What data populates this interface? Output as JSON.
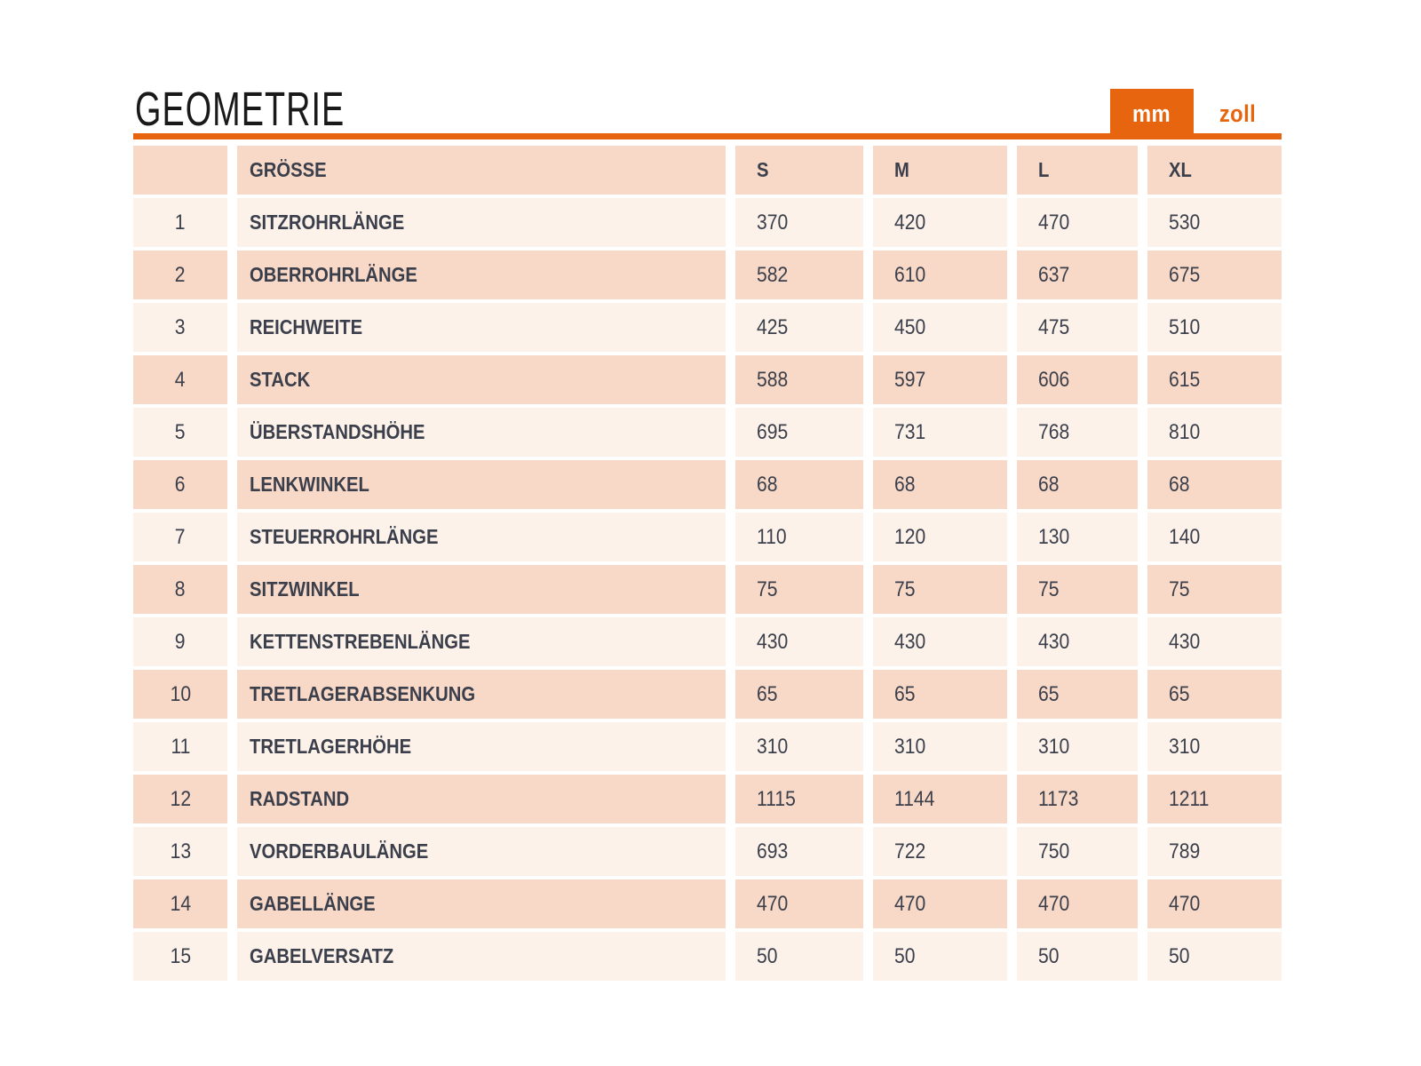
{
  "page": {
    "title": "GEOMETRIE"
  },
  "unit_toggle": {
    "tabs": [
      {
        "label": "mm",
        "active": true
      },
      {
        "label": "zoll",
        "active": false
      }
    ]
  },
  "colors": {
    "accent": "#e7650f",
    "row_peach": "#f8d8c6",
    "row_light": "#fdf2ea",
    "text_dark": "#3a3f4b",
    "title_color": "#191919",
    "active_tab_text": "#ffffff"
  },
  "table": {
    "header": {
      "index_label": "",
      "size_label": "GRÖSSE",
      "size_columns": [
        "S",
        "M",
        "L",
        "XL"
      ]
    },
    "rows": [
      {
        "num": "1",
        "label": "SITZROHRLÄNGE",
        "values": [
          "370",
          "420",
          "470",
          "530"
        ]
      },
      {
        "num": "2",
        "label": "OBERROHRLÄNGE",
        "values": [
          "582",
          "610",
          "637",
          "675"
        ]
      },
      {
        "num": "3",
        "label": "REICHWEITE",
        "values": [
          "425",
          "450",
          "475",
          "510"
        ]
      },
      {
        "num": "4",
        "label": "STACK",
        "values": [
          "588",
          "597",
          "606",
          "615"
        ]
      },
      {
        "num": "5",
        "label": "ÜBERSTANDSHÖHE",
        "values": [
          "695",
          "731",
          "768",
          "810"
        ]
      },
      {
        "num": "6",
        "label": "LENKWINKEL",
        "values": [
          "68",
          "68",
          "68",
          "68"
        ]
      },
      {
        "num": "7",
        "label": "STEUERROHRLÄNGE",
        "values": [
          "110",
          "120",
          "130",
          "140"
        ]
      },
      {
        "num": "8",
        "label": "SITZWINKEL",
        "values": [
          "75",
          "75",
          "75",
          "75"
        ]
      },
      {
        "num": "9",
        "label": "KETTENSTREBENLÄNGE",
        "values": [
          "430",
          "430",
          "430",
          "430"
        ]
      },
      {
        "num": "10",
        "label": "TRETLAGERABSENKUNG",
        "values": [
          "65",
          "65",
          "65",
          "65"
        ]
      },
      {
        "num": "11",
        "label": "TRETLAGERHÖHE",
        "values": [
          "310",
          "310",
          "310",
          "310"
        ]
      },
      {
        "num": "12",
        "label": "RADSTAND",
        "values": [
          "1115",
          "1144",
          "1173",
          "1211"
        ]
      },
      {
        "num": "13",
        "label": "VORDERBAULÄNGE",
        "values": [
          "693",
          "722",
          "750",
          "789"
        ]
      },
      {
        "num": "14",
        "label": "GABELLÄNGE",
        "values": [
          "470",
          "470",
          "470",
          "470"
        ]
      },
      {
        "num": "15",
        "label": "GABELVERSATZ",
        "values": [
          "50",
          "50",
          "50",
          "50"
        ]
      }
    ]
  }
}
